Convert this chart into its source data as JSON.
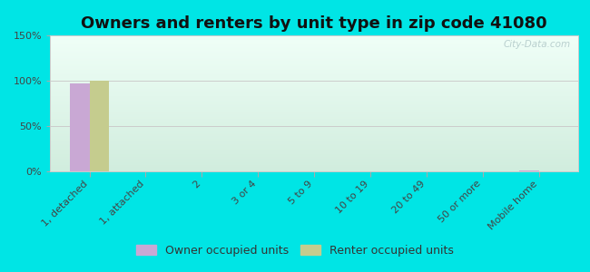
{
  "title": "Owners and renters by unit type in zip code 41080",
  "categories": [
    "1, detached",
    "1, attached",
    "2",
    "3 or 4",
    "5 to 9",
    "10 to 19",
    "20 to 49",
    "50 or more",
    "Mobile home"
  ],
  "owner_values": [
    97,
    0,
    0,
    0,
    0,
    0,
    0,
    0,
    1
  ],
  "renter_values": [
    100,
    0,
    0,
    0,
    0,
    0,
    0,
    0,
    0
  ],
  "owner_color": "#c9a8d4",
  "renter_color": "#c5cc8e",
  "ylim": [
    0,
    150
  ],
  "yticks": [
    0,
    50,
    100,
    150
  ],
  "ytick_labels": [
    "0%",
    "50%",
    "100%",
    "150%"
  ],
  "background_color": "#00e5e5",
  "bar_width": 0.35,
  "legend_owner": "Owner occupied units",
  "legend_renter": "Renter occupied units",
  "watermark": "City-Data.com",
  "title_fontsize": 13,
  "tick_fontsize": 8,
  "legend_fontsize": 9,
  "grid_color": "#cccccc",
  "spine_color": "#cccccc"
}
